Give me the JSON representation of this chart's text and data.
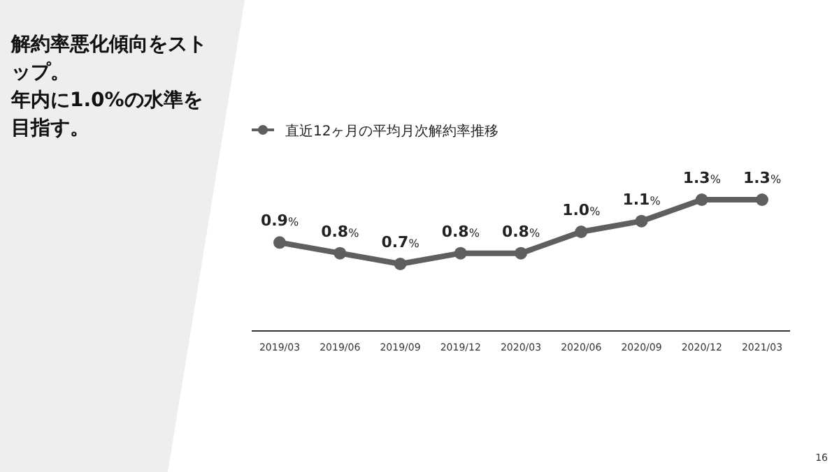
{
  "chart_data": {
    "type": "line",
    "title": "解約率悪化傾向をストップ。年内に1.0%の水準を目指す。",
    "categories": [
      "2019/03",
      "2019/06",
      "2019/09",
      "2019/12",
      "2020/03",
      "2020/06",
      "2020/09",
      "2020/12",
      "2021/03"
    ],
    "series": [
      {
        "name": "直近12ヶ月の平均月次解約率推移",
        "color": "#5f5f5f",
        "values": [
          0.9,
          0.8,
          0.7,
          0.8,
          0.8,
          1.0,
          1.1,
          1.3,
          1.3
        ],
        "value_labels": [
          "0.9%",
          "0.8%",
          "0.7%",
          "0.8%",
          "0.8%",
          "1.0%",
          "1.1%",
          "1.3%",
          "1.3%"
        ]
      }
    ],
    "marker": "circle",
    "line_style": "solid",
    "legend": "top left",
    "annotations": [
      "16"
    ]
  }
}
